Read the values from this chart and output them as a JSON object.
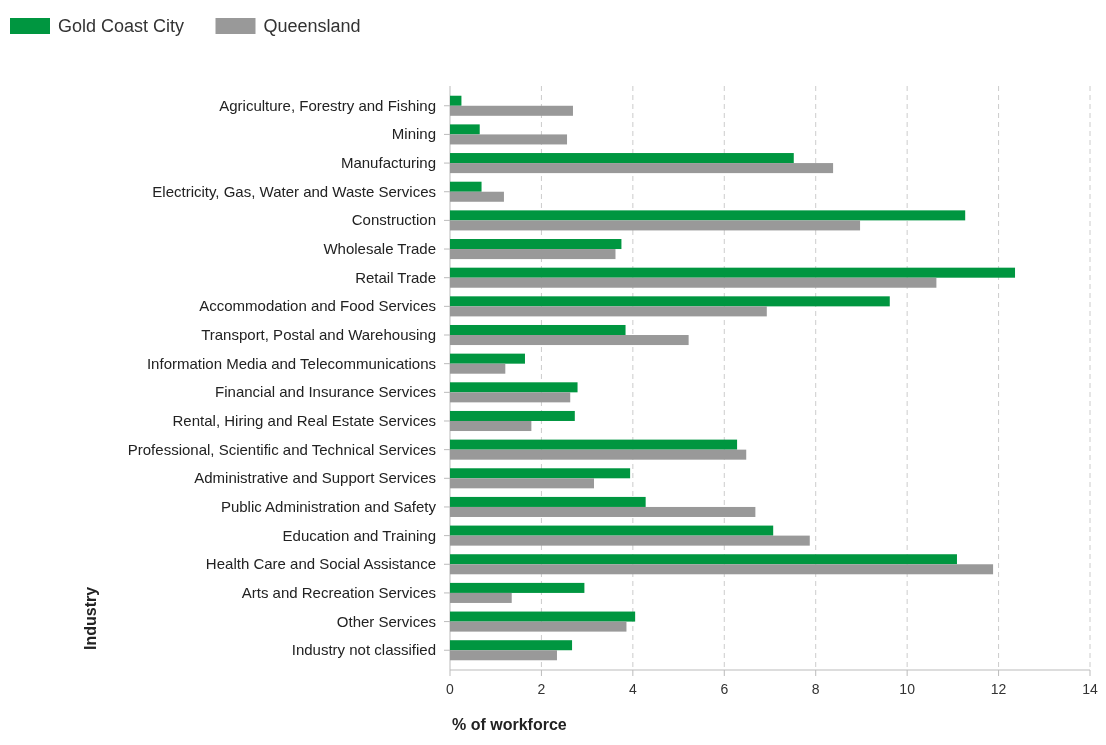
{
  "chart_data": {
    "type": "bar",
    "orientation": "horizontal",
    "xlabel": "% of workforce",
    "ylabel": "Industry",
    "categories": [
      "Agriculture, Forestry and Fishing",
      "Mining",
      "Manufacturing",
      "Electricity, Gas, Water and Waste Services",
      "Construction",
      "Wholesale Trade",
      "Retail Trade",
      "Accommodation and Food Services",
      "Transport, Postal and Warehousing",
      "Information Media and Telecommunications",
      "Financial and Insurance Services",
      "Rental, Hiring and Real Estate Services",
      "Professional, Scientific and Technical Services",
      "Administrative and Support Services",
      "Public Administration and Safety",
      "Education and Training",
      "Health Care and Social Assistance",
      "Arts and Recreation Services",
      "Other Services",
      "Industry not classified"
    ],
    "series": [
      {
        "name": "Gold Coast City",
        "color": "#009640",
        "values": [
          0.25,
          0.65,
          7.52,
          0.69,
          11.27,
          3.75,
          12.36,
          9.62,
          3.84,
          1.64,
          2.79,
          2.73,
          6.28,
          3.94,
          4.28,
          7.07,
          11.09,
          2.94,
          4.05,
          2.67
        ]
      },
      {
        "name": "Queensland",
        "color": "#999999",
        "values": [
          2.69,
          2.56,
          8.38,
          1.18,
          8.97,
          3.62,
          10.64,
          6.93,
          5.22,
          1.21,
          2.63,
          1.78,
          6.48,
          3.15,
          6.68,
          7.87,
          11.88,
          1.35,
          3.86,
          2.34
        ]
      }
    ],
    "xlim": [
      0,
      14
    ],
    "xticks": [
      0,
      2,
      4,
      6,
      8,
      10,
      12,
      14
    ],
    "grid": "x",
    "legend": "top left"
  }
}
